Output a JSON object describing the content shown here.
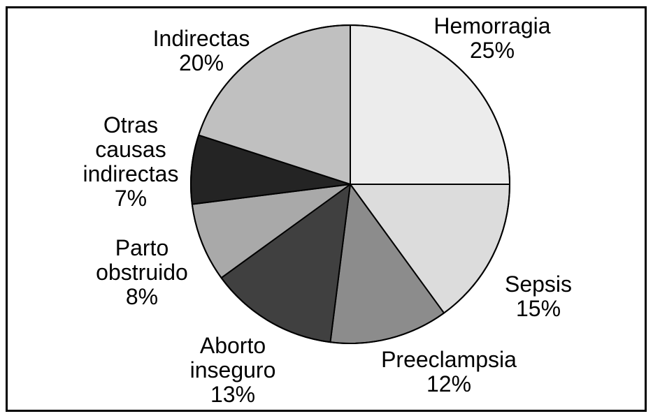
{
  "figure": {
    "background": "#ffffff",
    "frame_color": "#000000",
    "text_color": "#000000"
  },
  "chart_data": {
    "type": "pie",
    "title": "",
    "start_angle": "12-oclock",
    "direction": "clockwise",
    "legend_position": "none",
    "labels_position": "outside",
    "total": 100,
    "slices": [
      {
        "name": "Hemorragia",
        "value": 25,
        "pct_label": "25%",
        "label_lines": [
          "Hemorragia"
        ],
        "color": "#ececec"
      },
      {
        "name": "Sepsis",
        "value": 15,
        "pct_label": "15%",
        "label_lines": [
          "Sepsis"
        ],
        "color": "#dcdcdc"
      },
      {
        "name": "Preeclampsia",
        "value": 12,
        "pct_label": "12%",
        "label_lines": [
          "Preeclampsia"
        ],
        "color": "#8c8c8c"
      },
      {
        "name": "Aborto inseguro",
        "value": 13,
        "pct_label": "13%",
        "label_lines": [
          "Aborto",
          "inseguro"
        ],
        "color": "#404040"
      },
      {
        "name": "Parto obstruido",
        "value": 8,
        "pct_label": "8%",
        "label_lines": [
          "Parto",
          "obstruido"
        ],
        "color": "#a9a9a9"
      },
      {
        "name": "Otras causas indirectas",
        "value": 7,
        "pct_label": "7%",
        "label_lines": [
          "Otras",
          "causas",
          "indirectas"
        ],
        "color": "#242424"
      },
      {
        "name": "Indirectas",
        "value": 20,
        "pct_label": "20%",
        "label_lines": [
          "Indirectas"
        ],
        "color": "#c0c0c0"
      }
    ]
  }
}
